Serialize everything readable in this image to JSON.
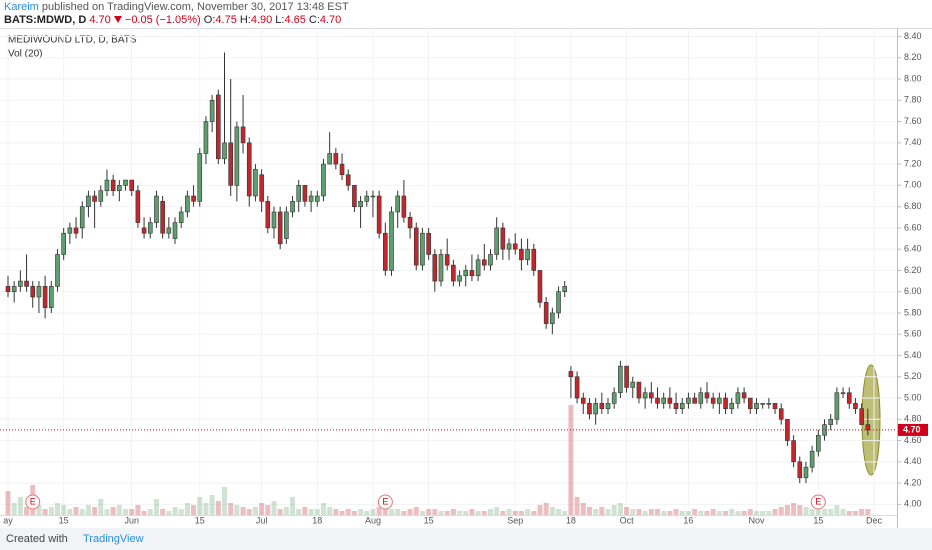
{
  "header": {
    "author": "Kareim",
    "published": "published on TradingView.com, November 30, 2017 13:48 EST",
    "symbol": "BATS:MDWD, D",
    "price": "4.70",
    "change": "−0.05 (−1.05%)",
    "fields": [
      {
        "key": "O:",
        "value": "4.75"
      },
      {
        "key": "H:",
        "value": "4.90"
      },
      {
        "key": "L:",
        "value": "4.65"
      },
      {
        "key": "C:",
        "value": "4.70"
      }
    ]
  },
  "footer": {
    "created": "Created with",
    "brand": "TradingView"
  },
  "chart_data": {
    "type": "candlestick",
    "title": "MEDIWOUND LTD, D, BATS",
    "up_color": "#5f9e6e",
    "down_color": "#c0282d",
    "ylim": [
      3.9,
      8.48
    ],
    "yticks": [
      {
        "value": 4.0,
        "label": "4.00"
      },
      {
        "value": 4.2,
        "label": "4.20"
      },
      {
        "value": 4.4,
        "label": "4.40"
      },
      {
        "value": 4.6,
        "label": "4.60"
      },
      {
        "value": 4.8,
        "label": "4.80"
      },
      {
        "value": 5.0,
        "label": "5.00"
      },
      {
        "value": 5.2,
        "label": "5.20"
      },
      {
        "value": 5.4,
        "label": "5.40"
      },
      {
        "value": 5.6,
        "label": "5.60"
      },
      {
        "value": 5.8,
        "label": "5.80"
      },
      {
        "value": 6.0,
        "label": "6.00"
      },
      {
        "value": 6.2,
        "label": "6.20"
      },
      {
        "value": 6.4,
        "label": "6.40"
      },
      {
        "value": 6.6,
        "label": "6.60"
      },
      {
        "value": 6.8,
        "label": "6.80"
      },
      {
        "value": 7.0,
        "label": "7.00"
      },
      {
        "value": 7.2,
        "label": "7.20"
      },
      {
        "value": 7.4,
        "label": "7.40"
      },
      {
        "value": 7.6,
        "label": "7.60"
      },
      {
        "value": 7.8,
        "label": "7.80"
      },
      {
        "value": 8.0,
        "label": "8.00"
      },
      {
        "value": 8.2,
        "label": "8.20"
      },
      {
        "value": 8.4,
        "label": "8.40"
      }
    ],
    "categories": [
      "ay",
      null,
      null,
      null,
      null,
      null,
      null,
      null,
      null,
      "15",
      null,
      null,
      null,
      null,
      null,
      null,
      null,
      null,
      null,
      null,
      "Jun",
      null,
      null,
      null,
      null,
      null,
      null,
      null,
      null,
      null,
      null,
      "15",
      null,
      null,
      null,
      null,
      null,
      null,
      null,
      null,
      null,
      "Jul",
      null,
      null,
      null,
      null,
      null,
      null,
      null,
      null,
      "18",
      null,
      null,
      null,
      null,
      null,
      null,
      null,
      null,
      "Aug",
      null,
      null,
      null,
      null,
      null,
      null,
      null,
      null,
      "15",
      null,
      null,
      null,
      null,
      null,
      null,
      null,
      null,
      null,
      null,
      null,
      null,
      null,
      "Sep",
      null,
      null,
      null,
      null,
      null,
      null,
      null,
      null,
      "18",
      null,
      null,
      null,
      null,
      null,
      null,
      null,
      null,
      "Oct",
      null,
      null,
      null,
      null,
      null,
      null,
      null,
      null,
      null,
      "16",
      null,
      null,
      null,
      null,
      null,
      null,
      null,
      null,
      null,
      null,
      "Nov",
      null,
      null,
      null,
      null,
      null,
      null,
      null,
      null,
      null,
      "15",
      null,
      null,
      null,
      null,
      null,
      null,
      null,
      null,
      "Dec"
    ],
    "ohlc": [
      [
        6.05,
        6.15,
        5.95,
        6.0
      ],
      [
        6.0,
        6.1,
        5.9,
        6.05
      ],
      [
        6.05,
        6.2,
        6.0,
        6.1
      ],
      [
        6.1,
        6.35,
        6.0,
        6.05
      ],
      [
        6.05,
        6.1,
        5.85,
        5.95
      ],
      [
        5.95,
        6.1,
        5.8,
        6.05
      ],
      [
        6.05,
        6.15,
        5.75,
        5.85
      ],
      [
        5.85,
        6.1,
        5.8,
        6.05
      ],
      [
        6.05,
        6.4,
        6.0,
        6.35
      ],
      [
        6.35,
        6.6,
        6.3,
        6.55
      ],
      [
        6.55,
        6.65,
        6.45,
        6.6
      ],
      [
        6.6,
        6.7,
        6.5,
        6.55
      ],
      [
        6.6,
        6.85,
        6.5,
        6.8
      ],
      [
        6.8,
        6.95,
        6.7,
        6.9
      ],
      [
        6.9,
        6.95,
        6.6,
        6.85
      ],
      [
        6.85,
        7.0,
        6.8,
        6.95
      ],
      [
        6.95,
        7.15,
        6.9,
        7.05
      ],
      [
        7.05,
        7.1,
        6.9,
        6.95
      ],
      [
        6.95,
        7.05,
        6.85,
        7.0
      ],
      [
        7.0,
        7.05,
        6.95,
        7.05
      ],
      [
        7.05,
        7.05,
        6.9,
        6.95
      ],
      [
        6.95,
        7.0,
        6.6,
        6.65
      ],
      [
        6.6,
        6.7,
        6.5,
        6.55
      ],
      [
        6.55,
        6.7,
        6.5,
        6.65
      ],
      [
        6.65,
        6.95,
        6.6,
        6.9
      ],
      [
        6.85,
        6.9,
        6.5,
        6.55
      ],
      [
        6.55,
        6.7,
        6.5,
        6.6
      ],
      [
        6.5,
        6.7,
        6.45,
        6.65
      ],
      [
        6.65,
        6.8,
        6.6,
        6.75
      ],
      [
        6.75,
        6.95,
        6.7,
        6.9
      ],
      [
        6.9,
        7.0,
        6.8,
        6.85
      ],
      [
        6.85,
        7.35,
        6.8,
        7.3
      ],
      [
        7.3,
        7.65,
        7.2,
        7.6
      ],
      [
        7.6,
        7.85,
        7.5,
        7.8
      ],
      [
        7.85,
        7.9,
        7.2,
        7.25
      ],
      [
        7.25,
        8.25,
        7.2,
        7.4
      ],
      [
        7.4,
        8.0,
        6.9,
        7.0
      ],
      [
        7.0,
        7.6,
        6.85,
        7.55
      ],
      [
        7.55,
        7.85,
        7.3,
        7.4
      ],
      [
        7.4,
        7.45,
        6.8,
        6.9
      ],
      [
        6.9,
        7.2,
        6.85,
        7.15
      ],
      [
        7.1,
        7.15,
        6.75,
        6.85
      ],
      [
        6.85,
        6.9,
        6.55,
        6.6
      ],
      [
        6.6,
        6.8,
        6.5,
        6.75
      ],
      [
        6.75,
        6.8,
        6.4,
        6.45
      ],
      [
        6.5,
        6.8,
        6.45,
        6.75
      ],
      [
        6.75,
        6.9,
        6.7,
        6.85
      ],
      [
        6.85,
        7.05,
        6.75,
        7.0
      ],
      [
        7.0,
        7.0,
        6.8,
        6.85
      ],
      [
        6.85,
        6.95,
        6.75,
        6.9
      ],
      [
        6.85,
        6.95,
        6.8,
        6.9
      ],
      [
        6.9,
        7.25,
        6.85,
        7.2
      ],
      [
        7.2,
        7.5,
        7.2,
        7.3
      ],
      [
        7.3,
        7.35,
        7.15,
        7.2
      ],
      [
        7.2,
        7.3,
        7.05,
        7.1
      ],
      [
        7.1,
        7.15,
        6.95,
        7.0
      ],
      [
        7.0,
        7.0,
        6.75,
        6.8
      ],
      [
        6.8,
        6.9,
        6.6,
        6.85
      ],
      [
        6.85,
        6.95,
        6.8,
        6.9
      ],
      [
        6.9,
        6.95,
        6.7,
        6.9
      ],
      [
        6.9,
        6.95,
        6.5,
        6.55
      ],
      [
        6.55,
        6.65,
        6.15,
        6.2
      ],
      [
        6.2,
        6.8,
        6.15,
        6.75
      ],
      [
        6.75,
        6.95,
        6.6,
        6.9
      ],
      [
        6.9,
        7.05,
        6.65,
        6.7
      ],
      [
        6.7,
        6.75,
        6.5,
        6.6
      ],
      [
        6.6,
        6.65,
        6.2,
        6.25
      ],
      [
        6.25,
        6.6,
        6.2,
        6.55
      ],
      [
        6.55,
        6.6,
        6.3,
        6.35
      ],
      [
        6.35,
        6.4,
        6.0,
        6.1
      ],
      [
        6.1,
        6.4,
        6.05,
        6.35
      ],
      [
        6.35,
        6.5,
        6.2,
        6.25
      ],
      [
        6.25,
        6.3,
        6.05,
        6.1
      ],
      [
        6.1,
        6.2,
        6.05,
        6.15
      ],
      [
        6.15,
        6.25,
        6.05,
        6.2
      ],
      [
        6.2,
        6.35,
        6.1,
        6.15
      ],
      [
        6.15,
        6.35,
        6.1,
        6.3
      ],
      [
        6.3,
        6.45,
        6.2,
        6.25
      ],
      [
        6.25,
        6.4,
        6.2,
        6.35
      ],
      [
        6.35,
        6.7,
        6.3,
        6.6
      ],
      [
        6.6,
        6.65,
        6.3,
        6.4
      ],
      [
        6.4,
        6.5,
        6.3,
        6.45
      ],
      [
        6.45,
        6.55,
        6.35,
        6.4
      ],
      [
        6.4,
        6.5,
        6.2,
        6.3
      ],
      [
        6.3,
        6.5,
        6.25,
        6.4
      ],
      [
        6.4,
        6.45,
        6.15,
        6.2
      ],
      [
        6.2,
        6.2,
        5.85,
        5.9
      ],
      [
        5.9,
        5.95,
        5.65,
        5.7
      ],
      [
        5.7,
        5.85,
        5.6,
        5.8
      ],
      [
        5.8,
        6.05,
        5.75,
        6.0
      ],
      [
        6.0,
        6.1,
        5.95,
        6.05
      ],
      [
        5.25,
        5.3,
        5.0,
        5.2
      ],
      [
        5.2,
        5.25,
        4.95,
        5.0
      ],
      [
        5.0,
        5.05,
        4.85,
        4.95
      ],
      [
        4.95,
        5.0,
        4.8,
        4.85
      ],
      [
        4.85,
        5.0,
        4.75,
        4.95
      ],
      [
        4.95,
        5.05,
        4.85,
        4.9
      ],
      [
        4.9,
        5.0,
        4.85,
        4.95
      ],
      [
        4.95,
        5.1,
        4.9,
        5.05
      ],
      [
        5.05,
        5.35,
        5.0,
        5.3
      ],
      [
        5.3,
        5.3,
        5.05,
        5.1
      ],
      [
        5.1,
        5.2,
        5.0,
        5.15
      ],
      [
        5.15,
        5.15,
        4.95,
        5.0
      ],
      [
        5.0,
        5.1,
        4.9,
        5.05
      ],
      [
        5.05,
        5.15,
        4.95,
        5.0
      ],
      [
        5.0,
        5.1,
        4.9,
        4.95
      ],
      [
        4.95,
        5.05,
        4.9,
        5.0
      ],
      [
        5.0,
        5.1,
        4.9,
        4.95
      ],
      [
        4.95,
        5.05,
        4.85,
        4.9
      ],
      [
        4.9,
        5.0,
        4.85,
        4.95
      ],
      [
        4.95,
        5.05,
        4.9,
        5.0
      ],
      [
        5.0,
        5.05,
        4.95,
        4.95
      ],
      [
        4.95,
        5.1,
        4.9,
        5.05
      ],
      [
        5.05,
        5.15,
        4.95,
        5.0
      ],
      [
        5.0,
        5.05,
        4.9,
        4.95
      ],
      [
        4.95,
        5.05,
        4.85,
        5.0
      ],
      [
        5.0,
        5.05,
        4.85,
        4.9
      ],
      [
        4.9,
        5.0,
        4.85,
        4.95
      ],
      [
        4.95,
        5.1,
        4.9,
        5.05
      ],
      [
        5.05,
        5.1,
        4.95,
        5.0
      ],
      [
        5.0,
        5.0,
        4.85,
        4.9
      ],
      [
        4.9,
        5.0,
        4.85,
        4.95
      ],
      [
        4.95,
        4.95,
        4.9,
        4.95
      ],
      [
        4.95,
        5.0,
        4.9,
        4.95
      ],
      [
        4.95,
        4.95,
        4.85,
        4.9
      ],
      [
        4.9,
        4.95,
        4.75,
        4.8
      ],
      [
        4.8,
        4.8,
        4.55,
        4.6
      ],
      [
        4.6,
        4.65,
        4.35,
        4.4
      ],
      [
        4.4,
        4.45,
        4.2,
        4.25
      ],
      [
        4.25,
        4.4,
        4.2,
        4.35
      ],
      [
        4.35,
        4.55,
        4.3,
        4.5
      ],
      [
        4.5,
        4.7,
        4.45,
        4.65
      ],
      [
        4.65,
        4.8,
        4.6,
        4.75
      ],
      [
        4.75,
        4.85,
        4.7,
        4.8
      ],
      [
        4.8,
        5.1,
        4.75,
        5.05
      ],
      [
        5.05,
        5.1,
        5.0,
        5.05
      ],
      [
        5.05,
        5.1,
        4.9,
        4.95
      ],
      [
        4.95,
        5.0,
        4.85,
        4.9
      ],
      [
        4.9,
        4.95,
        4.75,
        4.75
      ],
      [
        4.75,
        4.9,
        4.65,
        4.7
      ],
      null
    ],
    "volume": {
      "name": "Vol (20)",
      "values": [
        120,
        60,
        90,
        40,
        150,
        50,
        30,
        40,
        60,
        50,
        30,
        40,
        30,
        50,
        40,
        80,
        30,
        40,
        50,
        30,
        30,
        50,
        20,
        30,
        80,
        30,
        20,
        40,
        30,
        60,
        50,
        90,
        60,
        100,
        70,
        140,
        60,
        50,
        40,
        30,
        40,
        60,
        50,
        70,
        30,
        40,
        90,
        30,
        40,
        30,
        30,
        60,
        40,
        30,
        20,
        30,
        20,
        30,
        20,
        30,
        40,
        60,
        30,
        30,
        20,
        30,
        40,
        20,
        30,
        30,
        20,
        20,
        30,
        20,
        20,
        30,
        20,
        20,
        30,
        40,
        20,
        30,
        20,
        20,
        30,
        20,
        50,
        60,
        40,
        30,
        20,
        550,
        90,
        60,
        40,
        30,
        40,
        30,
        50,
        60,
        40,
        30,
        30,
        20,
        30,
        30,
        20,
        20,
        30,
        20,
        20,
        30,
        20,
        20,
        30,
        20,
        20,
        30,
        20,
        20,
        30,
        20,
        20,
        20,
        30,
        40,
        50,
        60,
        50,
        40,
        30,
        40,
        30,
        30,
        50,
        30,
        20,
        20,
        30,
        30,
        null
      ]
    },
    "events": [
      {
        "index": 4,
        "label": "E"
      },
      {
        "index": 61,
        "label": "E"
      },
      {
        "index": 131,
        "label": "E"
      }
    ],
    "last_price": {
      "value": 4.7,
      "label": "4.70"
    },
    "grid": true
  }
}
